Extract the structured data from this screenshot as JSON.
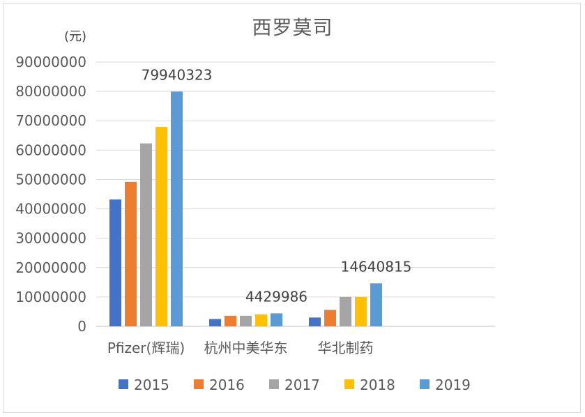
{
  "chart_data": {
    "type": "bar",
    "title": "西罗莫司",
    "ylabel": "(元)",
    "xlabel": "",
    "categories": [
      "Pfizer(辉瑞)",
      "杭州中美华东",
      "华北制药"
    ],
    "ylim": [
      0,
      90000000
    ],
    "yticks": [
      0,
      10000000,
      20000000,
      30000000,
      40000000,
      50000000,
      60000000,
      70000000,
      80000000,
      90000000
    ],
    "grid": true,
    "legend_position": "bottom",
    "series": [
      {
        "name": "2015",
        "color": "#4472c4",
        "values": [
          43200000,
          2500000,
          3000000
        ]
      },
      {
        "name": "2016",
        "color": "#ed7d31",
        "values": [
          49200000,
          3600000,
          5600000
        ]
      },
      {
        "name": "2017",
        "color": "#a5a5a5",
        "values": [
          62300000,
          3600000,
          10000000
        ]
      },
      {
        "name": "2018",
        "color": "#ffc000",
        "values": [
          67900000,
          4100000,
          10000000
        ]
      },
      {
        "name": "2019",
        "color": "#5b9bd5",
        "values": [
          79940323,
          4429986,
          14640815
        ]
      }
    ],
    "data_labels": [
      {
        "series": "2019",
        "category": "Pfizer(辉瑞)",
        "text": "79940323"
      },
      {
        "series": "2019",
        "category": "杭州中美华东",
        "text": "4429986"
      },
      {
        "series": "2019",
        "category": "华北制药",
        "text": "14640815"
      }
    ]
  }
}
